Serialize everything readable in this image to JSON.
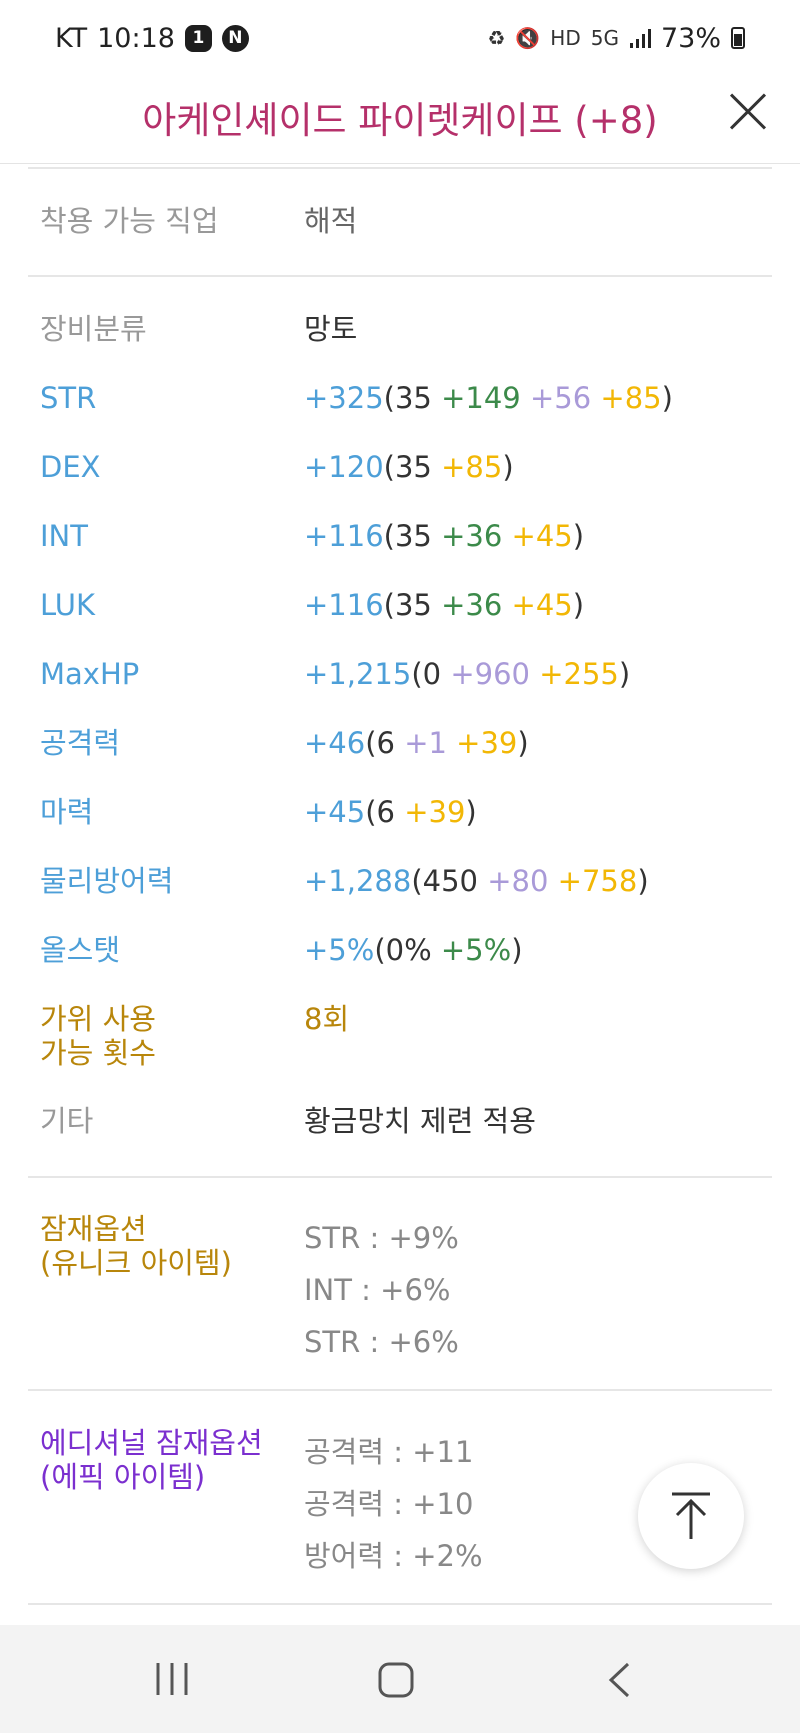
{
  "status": {
    "carrier": "KT",
    "time": "10:18",
    "badge1": "1",
    "badge2": "N",
    "hd": "HD",
    "net": "5G",
    "battery": "73%"
  },
  "header": {
    "title": "아케인셰이드 파이렛케이프 (+8)"
  },
  "job": {
    "label": "착용 가능 직업",
    "value": "해적"
  },
  "category": {
    "label": "장비분류",
    "value": "망토"
  },
  "stats": [
    {
      "label": "STR",
      "total": "+325",
      "base": "35",
      "green": "+149",
      "lav": "+56",
      "yel": "+85"
    },
    {
      "label": "DEX",
      "total": "+120",
      "base": "35",
      "green": "",
      "lav": "",
      "yel": "+85"
    },
    {
      "label": "INT",
      "total": "+116",
      "base": "35",
      "green": "+36",
      "lav": "",
      "yel": "+45"
    },
    {
      "label": "LUK",
      "total": "+116",
      "base": "35",
      "green": "+36",
      "lav": "",
      "yel": "+45"
    },
    {
      "label": "MaxHP",
      "total": "+1,215",
      "base": "0",
      "green": "",
      "lav": "+960",
      "yel": "+255"
    },
    {
      "label": "공격력",
      "total": "+46",
      "base": "6",
      "green": "",
      "lav": "+1",
      "yel": "+39"
    },
    {
      "label": "마력",
      "total": "+45",
      "base": "6",
      "green": "",
      "lav": "",
      "yel": "+39"
    },
    {
      "label": "물리방어력",
      "total": "+1,288",
      "base": "450",
      "green": "",
      "lav": "+80",
      "yel": "+758"
    },
    {
      "label": "올스탯",
      "total": "+5%",
      "base": "0%",
      "green": "+5%",
      "lav": "",
      "yel": ""
    }
  ],
  "scissors": {
    "label_line1": "가위 사용",
    "label_line2": "가능 횟수",
    "value": "8회"
  },
  "etc": {
    "label": "기타",
    "value": "황금망치 제련 적용"
  },
  "potential": {
    "label_line1": "잠재옵션",
    "label_line2": "(유니크 아이템)",
    "lines": [
      "STR : +9%",
      "INT : +6%",
      "STR : +6%"
    ]
  },
  "additional": {
    "label_line1": "에디셔널 잠재옵션",
    "label_line2": "(에픽 아이템)",
    "lines": [
      "공격력 : +11",
      "공격력 : +10",
      "방어력 : +2%"
    ]
  },
  "colors": {
    "title": "#b5306a",
    "stat_label": "#4d9fd8",
    "gold": "#b8860b",
    "purple": "#7b2fcf",
    "green": "#3c8a4a",
    "lavender": "#a99ad8",
    "yellow": "#f2b705"
  },
  "icons": {
    "close": "close-icon",
    "scroll_top": "arrow-up-icon",
    "nav_recent": "recent-apps-icon",
    "nav_home": "home-icon",
    "nav_back": "back-icon"
  }
}
